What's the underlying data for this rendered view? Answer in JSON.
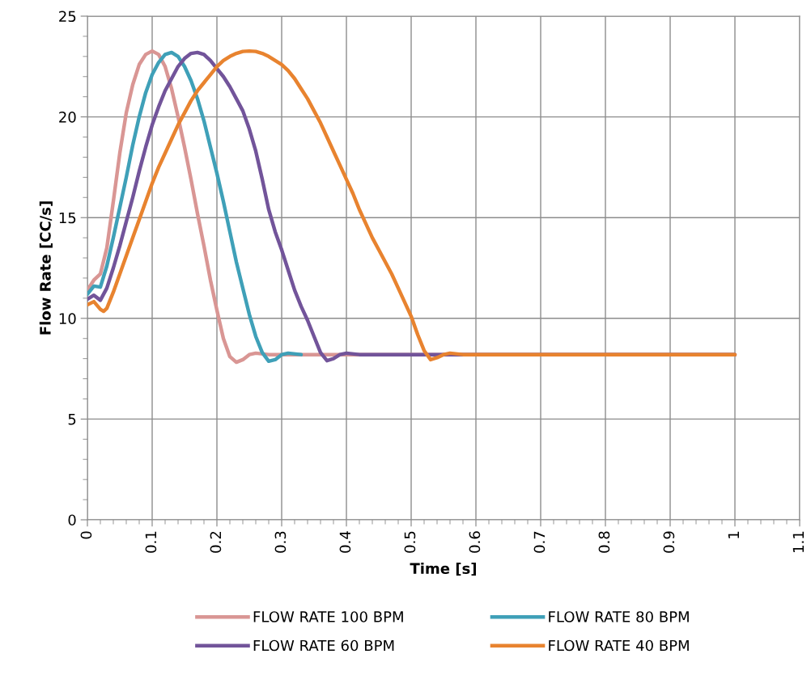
{
  "chart_data": {
    "type": "line",
    "xlabel": "Time [s]",
    "ylabel": "Flow Rate [CC/s]",
    "xlim": [
      0,
      1.1
    ],
    "xticks": [
      0,
      0.1,
      0.2,
      0.3,
      0.4,
      0.5,
      0.6,
      0.7,
      0.8,
      0.9,
      1,
      1.1
    ],
    "ylim": [
      0,
      25
    ],
    "yticks": [
      0,
      5,
      10,
      15,
      20,
      25
    ],
    "grid": true,
    "legend": "bottom",
    "marker": "none",
    "line_style": "solid",
    "series": [
      {
        "name": "FLOW RATE 100 BPM",
        "color": "#d99694",
        "x": [
          0,
          0.01,
          0.02,
          0.03,
          0.04,
          0.05,
          0.06,
          0.07,
          0.08,
          0.09,
          0.1,
          0.11,
          0.12,
          0.13,
          0.14,
          0.15,
          0.16,
          0.17,
          0.18,
          0.19,
          0.2,
          0.21,
          0.22,
          0.23,
          0.24,
          0.25,
          0.26,
          0.28,
          0.3,
          1
        ],
        "values": [
          11.4,
          11.9,
          12.2,
          13.5,
          15.8,
          18.2,
          20.2,
          21.6,
          22.6,
          23.1,
          23.27,
          23.1,
          22.5,
          21.4,
          20.0,
          18.5,
          16.9,
          15.2,
          13.6,
          11.9,
          10.4,
          9.0,
          8.1,
          7.82,
          7.95,
          8.2,
          8.27,
          8.2,
          8.2,
          8.2
        ]
      },
      {
        "name": "FLOW RATE 80 BPM",
        "color": "#3fa0b8",
        "x": [
          0,
          0.01,
          0.02,
          0.03,
          0.04,
          0.05,
          0.06,
          0.07,
          0.08,
          0.09,
          0.1,
          0.11,
          0.12,
          0.13,
          0.14,
          0.15,
          0.16,
          0.17,
          0.18,
          0.19,
          0.2,
          0.21,
          0.22,
          0.23,
          0.24,
          0.25,
          0.26,
          0.27,
          0.28,
          0.29,
          0.3,
          0.31,
          0.33
        ],
        "values": [
          11.2,
          11.6,
          11.55,
          12.6,
          14.0,
          15.5,
          17.0,
          18.6,
          20.0,
          21.2,
          22.1,
          22.7,
          23.1,
          23.2,
          23.0,
          22.5,
          21.8,
          20.9,
          19.8,
          18.5,
          17.2,
          15.8,
          14.3,
          12.8,
          11.5,
          10.2,
          9.1,
          8.3,
          7.87,
          7.95,
          8.2,
          8.27,
          8.2
        ]
      },
      {
        "name": "FLOW RATE 60 BPM",
        "color": "#72549a",
        "x": [
          0,
          0.01,
          0.02,
          0.03,
          0.04,
          0.05,
          0.06,
          0.07,
          0.08,
          0.09,
          0.1,
          0.11,
          0.12,
          0.13,
          0.14,
          0.15,
          0.16,
          0.17,
          0.18,
          0.19,
          0.2,
          0.21,
          0.22,
          0.23,
          0.24,
          0.25,
          0.26,
          0.27,
          0.28,
          0.29,
          0.3,
          0.31,
          0.32,
          0.33,
          0.34,
          0.35,
          0.36,
          0.37,
          0.38,
          0.39,
          0.4,
          0.42,
          1
        ],
        "values": [
          10.95,
          11.15,
          10.9,
          11.5,
          12.5,
          13.6,
          14.8,
          16.0,
          17.3,
          18.5,
          19.6,
          20.5,
          21.3,
          21.9,
          22.5,
          22.9,
          23.15,
          23.2,
          23.1,
          22.8,
          22.4,
          22.0,
          21.5,
          20.9,
          20.3,
          19.4,
          18.3,
          16.9,
          15.4,
          14.3,
          13.4,
          12.4,
          11.4,
          10.6,
          9.9,
          9.1,
          8.3,
          7.9,
          8.0,
          8.2,
          8.27,
          8.2,
          8.2
        ]
      },
      {
        "name": "FLOW RATE 40 BPM",
        "color": "#e8832f",
        "x": [
          0,
          0.01,
          0.02,
          0.025,
          0.03,
          0.04,
          0.05,
          0.06,
          0.07,
          0.08,
          0.09,
          0.1,
          0.11,
          0.12,
          0.13,
          0.14,
          0.15,
          0.16,
          0.17,
          0.18,
          0.19,
          0.2,
          0.21,
          0.22,
          0.23,
          0.24,
          0.25,
          0.26,
          0.27,
          0.28,
          0.29,
          0.3,
          0.31,
          0.32,
          0.33,
          0.34,
          0.35,
          0.36,
          0.37,
          0.38,
          0.39,
          0.4,
          0.41,
          0.42,
          0.43,
          0.44,
          0.45,
          0.46,
          0.47,
          0.48,
          0.49,
          0.5,
          0.51,
          0.52,
          0.53,
          0.54,
          0.55,
          0.56,
          0.58,
          1
        ],
        "values": [
          10.67,
          10.83,
          10.45,
          10.35,
          10.5,
          11.3,
          12.2,
          13.1,
          14.0,
          14.9,
          15.8,
          16.7,
          17.5,
          18.2,
          18.9,
          19.6,
          20.2,
          20.8,
          21.3,
          21.7,
          22.1,
          22.5,
          22.8,
          23.0,
          23.15,
          23.25,
          23.27,
          23.25,
          23.15,
          23.0,
          22.8,
          22.6,
          22.3,
          21.9,
          21.4,
          20.9,
          20.3,
          19.7,
          19.0,
          18.3,
          17.6,
          16.9,
          16.2,
          15.4,
          14.7,
          14.0,
          13.4,
          12.8,
          12.2,
          11.5,
          10.8,
          10.1,
          9.2,
          8.4,
          7.95,
          8.05,
          8.2,
          8.27,
          8.2,
          8.2
        ]
      }
    ]
  }
}
